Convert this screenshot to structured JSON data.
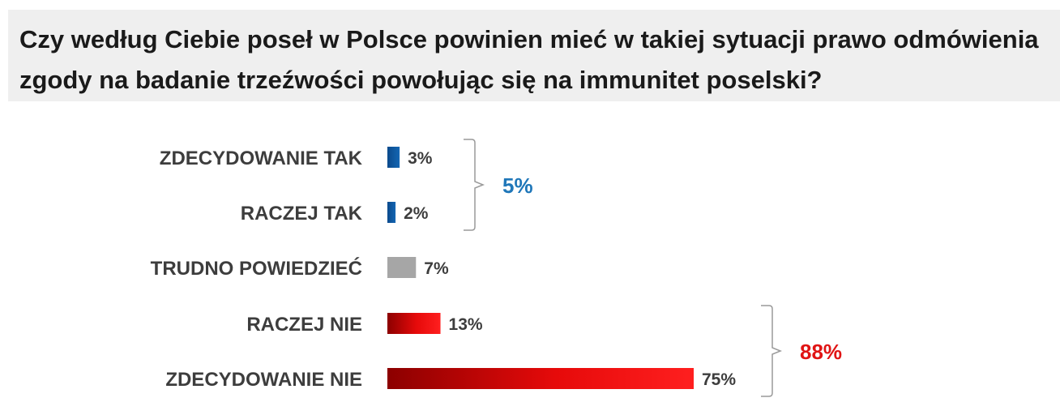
{
  "title": "Czy według Ciebie poseł w Polsce powinien mieć w takiej sytuacji prawo odmówienia zgody na badanie trzeźwości powołując się na immunitet poselski?",
  "colors": {
    "blue": "#1466b3",
    "blue_dark": "#0b4a8c",
    "gray": "#a6a6a6",
    "red": "#ff1f1f",
    "red_dark": "#8c0000",
    "bracket": "#9a9a9a",
    "group_blue": "#1f77b9",
    "group_red": "#e01414"
  },
  "chart_data": {
    "type": "bar",
    "orientation": "horizontal",
    "categories": [
      "ZDECYDOWANIE TAK",
      "RACZEJ TAK",
      "TRUDNO POWIEDZIEĆ",
      "RACZEJ NIE",
      "ZDECYDOWANIE NIE"
    ],
    "values": [
      3,
      2,
      7,
      13,
      75
    ],
    "value_labels": [
      "3%",
      "2%",
      "7%",
      "13%",
      "75%"
    ],
    "bar_colors": [
      "blue",
      "blue",
      "gray",
      "red",
      "red"
    ],
    "groups": [
      {
        "label": "5%",
        "from": 0,
        "to": 1,
        "color": "group_blue"
      },
      {
        "label": "88%",
        "from": 3,
        "to": 4,
        "color": "group_red"
      }
    ],
    "xlim": [
      0,
      75
    ],
    "grid": false,
    "legend": "none"
  }
}
